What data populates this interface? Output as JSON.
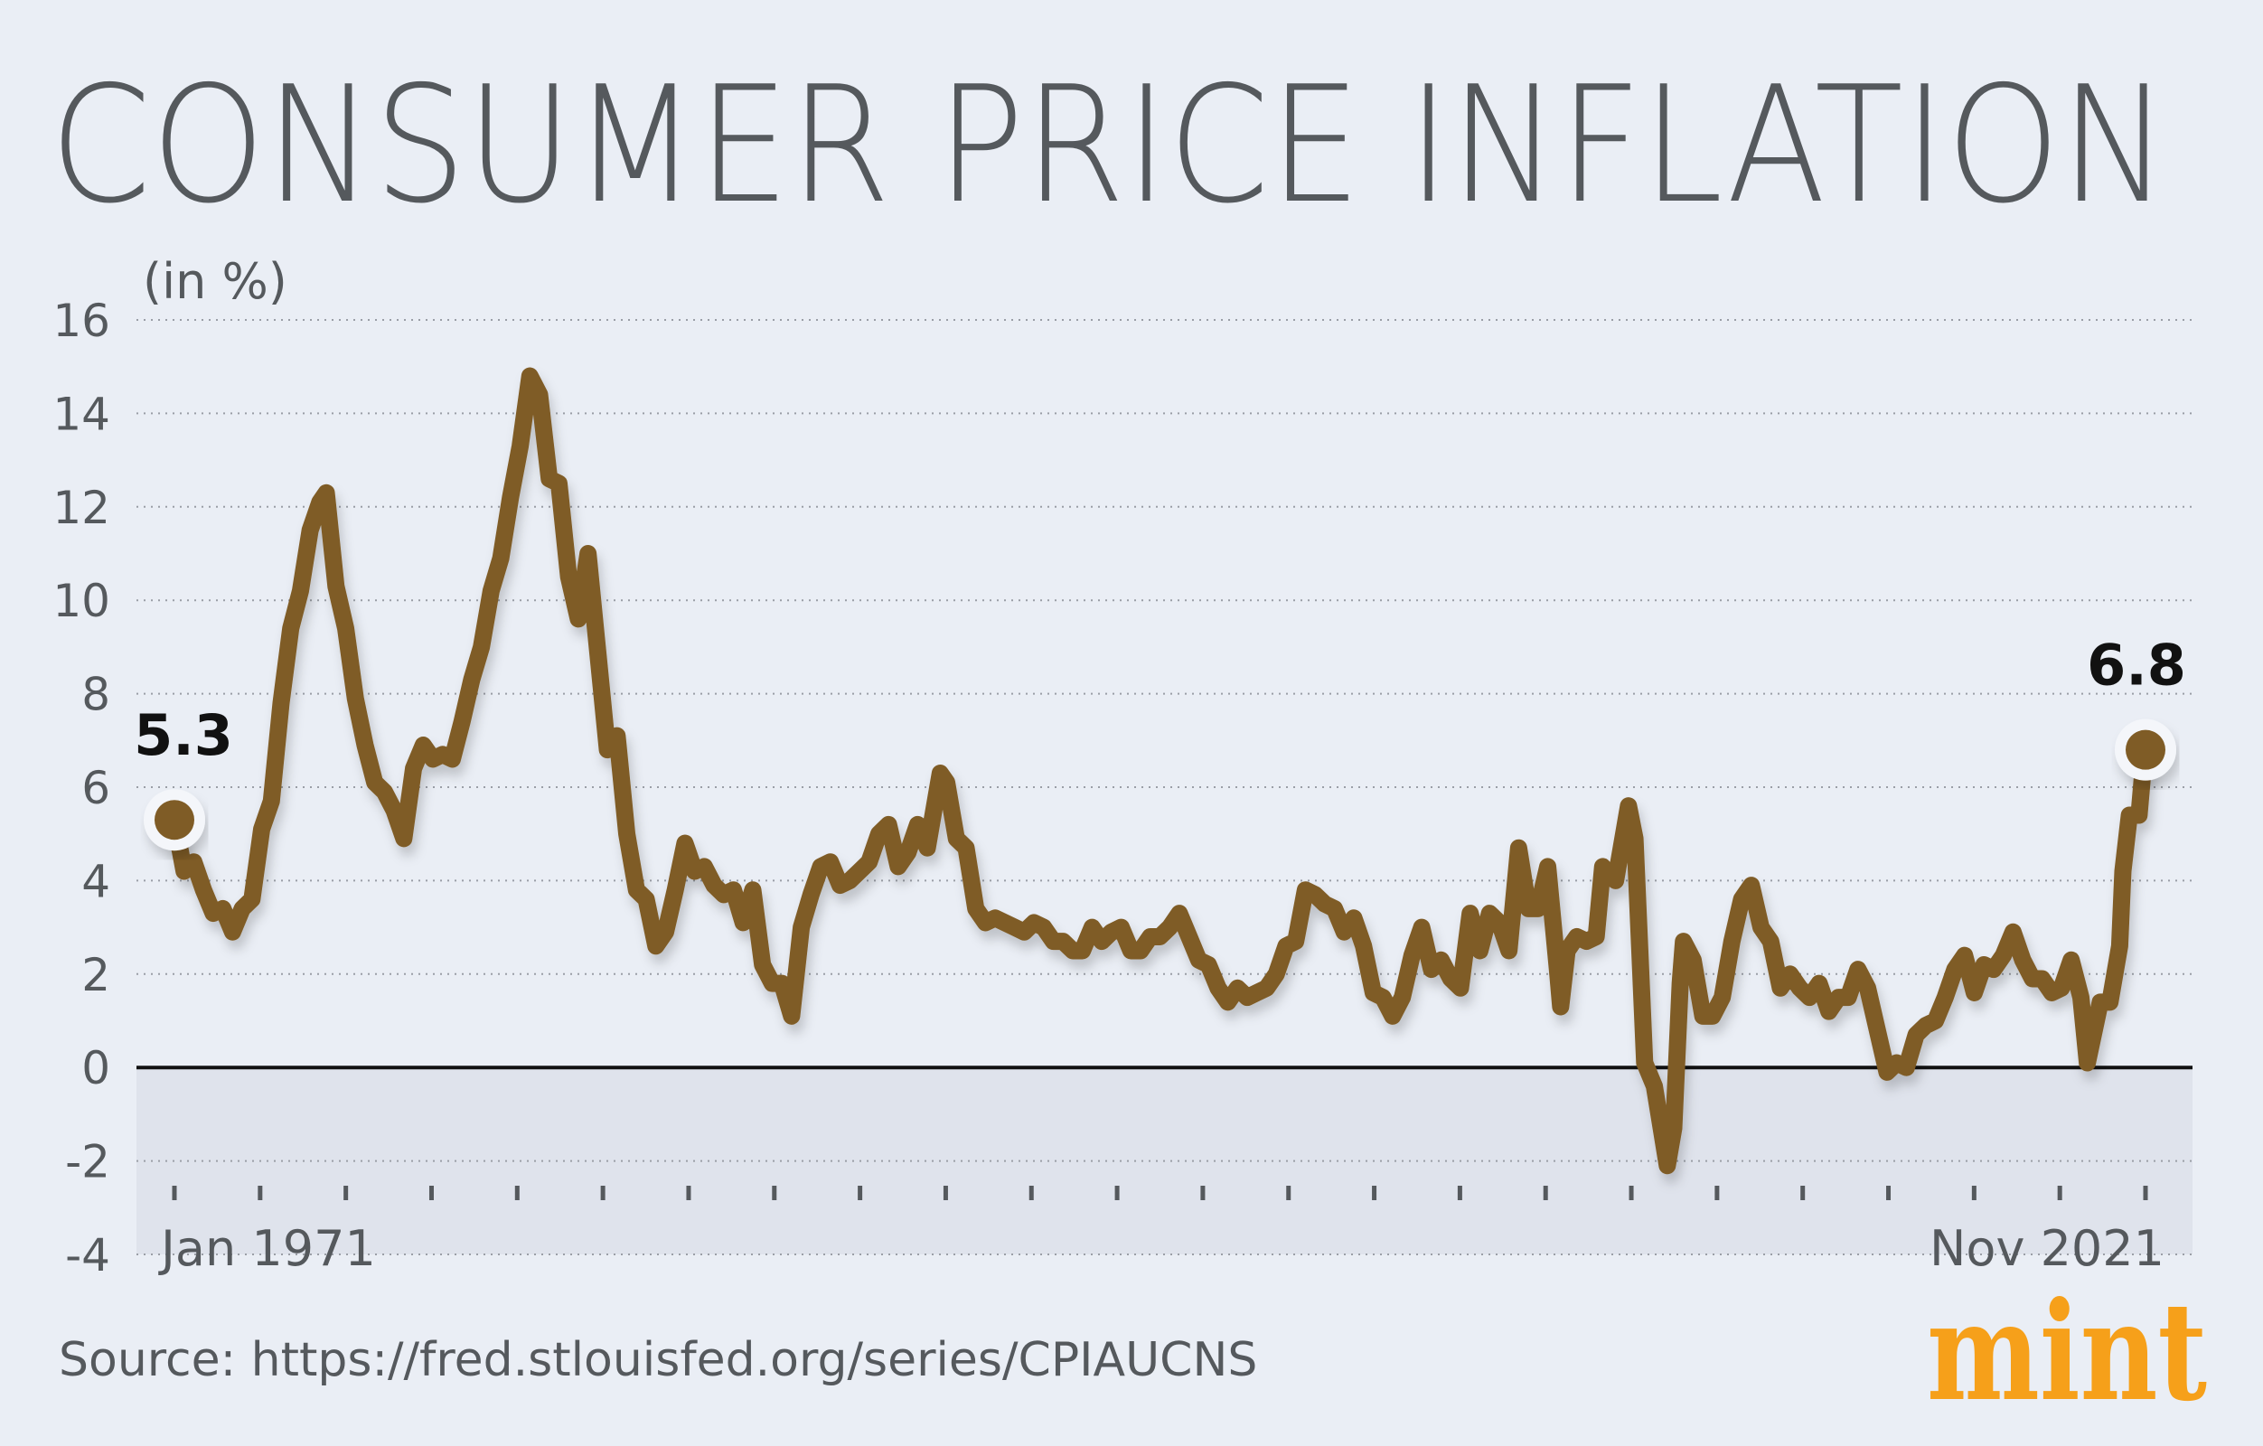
{
  "chart_data": {
    "type": "line",
    "title": "CONSUMER PRICE INFLATION",
    "ylabel": "(in %)",
    "xlabel": "",
    "ylim": [
      -4,
      16
    ],
    "yticks": [
      16,
      14,
      12,
      10,
      8,
      6,
      4,
      2,
      0,
      -2,
      -4
    ],
    "xlim": [
      "1971-01",
      "2021-11"
    ],
    "x_tick_labels": {
      "first": "Jan 1971",
      "last": "Nov 2021"
    },
    "x_tick_count": 24,
    "grid": true,
    "negative_region_shaded": true,
    "colors": {
      "line": "#7f5c26",
      "background": "#eaeef5",
      "negative_band": "#dfe3ec",
      "logo": "#f6a01a"
    },
    "annotations": [
      {
        "x": "1971-01",
        "y": 5.3,
        "label": "5.3"
      },
      {
        "x": "2021-11",
        "y": 6.8,
        "label": "6.8"
      }
    ],
    "series": [
      {
        "x": [
          "1971-01",
          "1971-04",
          "1971-07",
          "1971-10",
          "1972-01",
          "1972-04",
          "1972-07",
          "1972-10",
          "1973-01",
          "1973-04",
          "1973-07",
          "1973-10",
          "1974-01",
          "1974-04",
          "1974-07",
          "1974-10",
          "1974-12",
          "1975-03",
          "1975-06",
          "1975-09",
          "1975-12",
          "1976-03",
          "1976-06",
          "1976-09",
          "1976-12",
          "1977-03",
          "1977-06",
          "1977-09",
          "1977-12",
          "1978-03",
          "1978-06",
          "1978-09",
          "1978-12",
          "1979-03",
          "1979-06",
          "1979-09",
          "1979-12",
          "1980-03",
          "1980-06",
          "1980-09",
          "1980-12",
          "1981-03",
          "1981-06",
          "1981-09",
          "1981-12",
          "1982-03",
          "1982-06",
          "1982-09",
          "1982-12",
          "1983-03",
          "1983-06",
          "1983-09",
          "1983-12",
          "1984-03",
          "1984-06",
          "1984-09",
          "1984-12",
          "1985-03",
          "1985-06",
          "1985-09",
          "1985-12",
          "1986-03",
          "1986-06",
          "1986-09",
          "1986-12",
          "1987-03",
          "1987-06",
          "1987-09",
          "1987-12",
          "1988-03",
          "1988-06",
          "1988-09",
          "1988-12",
          "1989-03",
          "1989-06",
          "1989-09",
          "1989-12",
          "1990-03",
          "1990-06",
          "1990-10",
          "1990-12",
          "1991-03",
          "1991-06",
          "1991-09",
          "1991-12",
          "1992-03",
          "1992-06",
          "1992-09",
          "1992-12",
          "1993-03",
          "1993-06",
          "1993-09",
          "1993-12",
          "1994-03",
          "1994-06",
          "1994-09",
          "1994-12",
          "1995-03",
          "1995-06",
          "1995-09",
          "1995-12",
          "1996-03",
          "1996-06",
          "1996-09",
          "1996-12",
          "1997-03",
          "1997-06",
          "1997-09",
          "1997-12",
          "1998-03",
          "1998-06",
          "1998-09",
          "1998-12",
          "1999-03",
          "1999-06",
          "1999-09",
          "1999-12",
          "2000-03",
          "2000-06",
          "2000-09",
          "2000-12",
          "2001-03",
          "2001-06",
          "2001-09",
          "2001-12",
          "2002-03",
          "2002-06",
          "2002-09",
          "2002-12",
          "2003-03",
          "2003-06",
          "2003-09",
          "2003-12",
          "2004-03",
          "2004-06",
          "2004-09",
          "2004-12",
          "2005-03",
          "2005-06",
          "2005-09",
          "2005-12",
          "2006-03",
          "2006-06",
          "2006-09",
          "2006-10",
          "2006-12",
          "2007-03",
          "2007-06",
          "2007-09",
          "2007-11",
          "2008-03",
          "2008-07",
          "2008-09",
          "2008-12",
          "2009-03",
          "2009-07",
          "2009-09",
          "2009-11",
          "2009-12",
          "2010-03",
          "2010-06",
          "2010-09",
          "2010-12",
          "2011-03",
          "2011-06",
          "2011-09",
          "2011-12",
          "2012-03",
          "2012-06",
          "2012-09",
          "2012-12",
          "2013-03",
          "2013-06",
          "2013-09",
          "2013-12",
          "2014-03",
          "2014-06",
          "2014-09",
          "2014-12",
          "2015-03",
          "2015-06",
          "2015-09",
          "2015-12",
          "2016-03",
          "2016-06",
          "2016-09",
          "2016-12",
          "2017-03",
          "2017-06",
          "2017-09",
          "2017-12",
          "2018-03",
          "2018-06",
          "2018-09",
          "2018-12",
          "2019-03",
          "2019-06",
          "2019-09",
          "2019-12",
          "2020-03",
          "2020-05",
          "2020-09",
          "2020-12",
          "2021-03",
          "2021-04",
          "2021-06",
          "2021-09",
          "2021-10",
          "2021-11"
        ],
        "values": [
          5.3,
          4.2,
          4.4,
          3.8,
          3.3,
          3.4,
          2.9,
          3.4,
          3.6,
          5.1,
          5.7,
          7.8,
          9.4,
          10.2,
          11.5,
          12.1,
          12.3,
          10.3,
          9.4,
          7.9,
          6.9,
          6.1,
          5.9,
          5.5,
          4.9,
          6.4,
          6.9,
          6.6,
          6.7,
          6.6,
          7.4,
          8.3,
          9.0,
          10.2,
          10.9,
          12.2,
          13.3,
          14.8,
          14.4,
          12.6,
          12.5,
          10.5,
          9.6,
          11.0,
          8.9,
          6.8,
          7.1,
          5.0,
          3.8,
          3.6,
          2.6,
          2.9,
          3.8,
          4.8,
          4.2,
          4.3,
          3.9,
          3.7,
          3.8,
          3.1,
          3.8,
          2.2,
          1.8,
          1.8,
          1.1,
          3.0,
          3.7,
          4.3,
          4.4,
          3.9,
          4.0,
          4.2,
          4.4,
          5.0,
          5.2,
          4.3,
          4.6,
          5.2,
          4.7,
          6.3,
          6.1,
          4.9,
          4.7,
          3.4,
          3.1,
          3.2,
          3.1,
          3.0,
          2.9,
          3.1,
          3.0,
          2.7,
          2.7,
          2.5,
          2.5,
          3.0,
          2.7,
          2.9,
          3.0,
          2.5,
          2.5,
          2.8,
          2.8,
          3.0,
          3.3,
          2.8,
          2.3,
          2.2,
          1.7,
          1.4,
          1.7,
          1.5,
          1.6,
          1.7,
          2.0,
          2.6,
          2.7,
          3.8,
          3.7,
          3.5,
          3.4,
          2.9,
          3.2,
          2.6,
          1.6,
          1.5,
          1.1,
          1.5,
          2.4,
          3.0,
          2.1,
          2.3,
          1.9,
          1.7,
          3.3,
          2.5,
          3.3,
          3.1,
          2.5,
          4.7,
          3.4,
          3.4,
          4.3,
          2.1,
          1.3,
          2.5,
          2.8,
          2.7,
          2.8,
          4.3,
          4.0,
          5.6,
          4.9,
          0.1,
          -0.4,
          -2.1,
          -1.3,
          1.8,
          2.7,
          2.3,
          1.1,
          1.1,
          1.5,
          2.7,
          3.6,
          3.9,
          3.0,
          2.7,
          1.7,
          2.0,
          1.7,
          1.5,
          1.8,
          1.2,
          1.5,
          1.5,
          2.1,
          1.7,
          0.8,
          -0.1,
          0.1,
          0.0,
          0.7,
          0.9,
          1.0,
          1.5,
          2.1,
          2.4,
          1.6,
          2.2,
          2.1,
          2.4,
          2.9,
          2.3,
          1.9,
          1.9,
          1.6,
          1.7,
          2.3,
          1.5,
          0.1,
          1.4,
          1.4,
          2.6,
          4.2,
          5.4,
          5.4,
          6.2,
          6.8
        ]
      }
    ]
  },
  "source": "Source: https://fred.stlouisfed.org/series/CPIAUCNS",
  "logo": "mint"
}
